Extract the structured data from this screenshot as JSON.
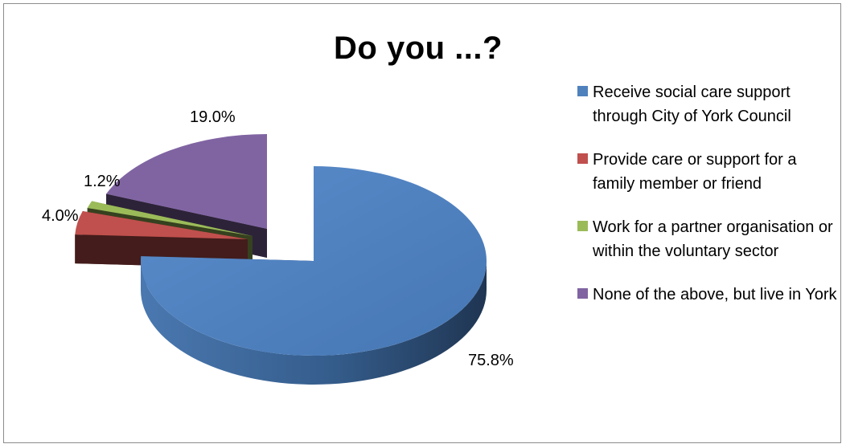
{
  "chart_data": {
    "type": "pie",
    "title": "Do you ...?",
    "legend_position": "right",
    "slices": [
      {
        "label": "Receive social care support through City of York Council",
        "value": 75.8,
        "value_label": "75.8%",
        "color": "#4f81bd"
      },
      {
        "label": "Provide care or support for a family member or friend",
        "value": 4.0,
        "value_label": "4.0%",
        "color": "#c0504d"
      },
      {
        "label": "Work for a partner organisation or within the voluntary sector",
        "value": 1.2,
        "value_label": "1.2%",
        "color": "#9bbb59"
      },
      {
        "label": "None of the above, but live in York",
        "value": 19.0,
        "value_label": "19.0%",
        "color": "#8064a2"
      }
    ]
  }
}
